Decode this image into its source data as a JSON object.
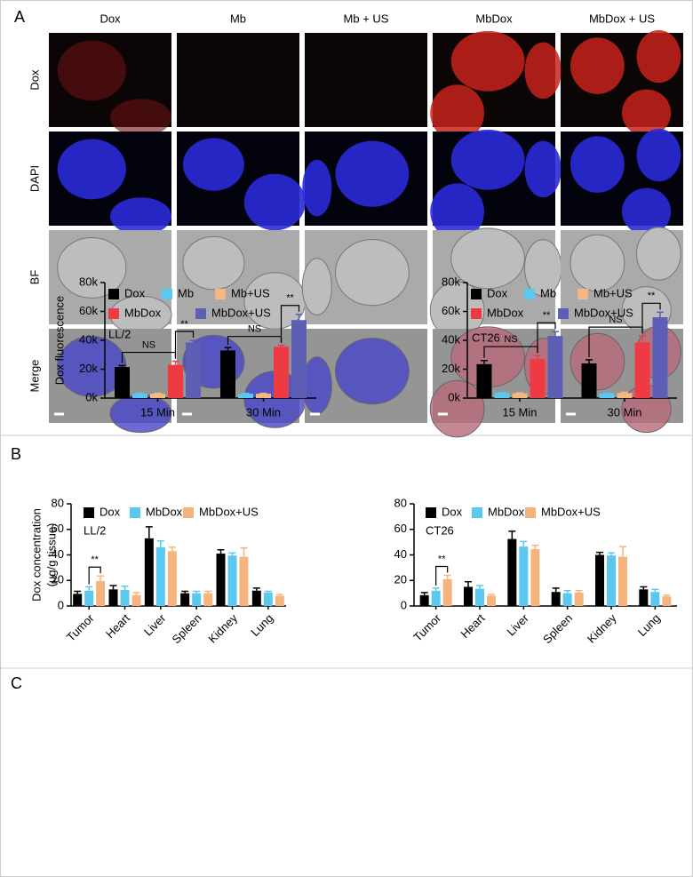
{
  "panel_labels": [
    "A",
    "B",
    "C"
  ],
  "panel_a": {
    "columns": [
      "Dox",
      "Mb",
      "Mb + US",
      "MbDox",
      "MbDox + US"
    ],
    "rows": [
      "Dox",
      "DAPI",
      "BF",
      "Merge"
    ]
  },
  "chart_data": [
    {
      "type": "bar",
      "ylabel": "Dox fluorescence",
      "label": "LL/2",
      "annotations": [
        "NS",
        "**",
        "NS",
        "**"
      ],
      "categories": [
        "15 Min",
        "30 Min"
      ],
      "ylim": [
        0,
        80000
      ],
      "yticks": [
        {
          "value": 0,
          "label": "0k"
        },
        {
          "value": 20000,
          "label": "20k"
        },
        {
          "value": 40000,
          "label": "40k"
        },
        {
          "value": 60000,
          "label": "60k"
        },
        {
          "value": 80000,
          "label": "80k"
        }
      ],
      "series": [
        {
          "name": "Dox",
          "color": "#000000",
          "values": [
            21500,
            33000
          ],
          "errors": [
            1000,
            2000
          ]
        },
        {
          "name": "Mb",
          "color": "#5bc8f0",
          "values": [
            3000,
            3000
          ],
          "errors": [
            300,
            300
          ]
        },
        {
          "name": "Mb+US",
          "color": "#f5b880",
          "values": [
            3000,
            3000
          ],
          "errors": [
            300,
            300
          ]
        },
        {
          "name": "MbDox",
          "color": "#ee3a43",
          "values": [
            23000,
            35500
          ],
          "errors": [
            2500,
            1000
          ]
        },
        {
          "name": "MbDox+US",
          "color": "#5d5fb5",
          "values": [
            38500,
            54000
          ],
          "errors": [
            1500,
            4000
          ]
        }
      ]
    },
    {
      "type": "bar",
      "label": "CT26",
      "annotations": [
        "NS",
        "**",
        "NS",
        "**"
      ],
      "categories": [
        "15 Min",
        "30 Min"
      ],
      "ylim": [
        0,
        80000
      ],
      "yticks": [
        {
          "value": 0,
          "label": "0k"
        },
        {
          "value": 20000,
          "label": "20k"
        },
        {
          "value": 40000,
          "label": "40k"
        },
        {
          "value": 60000,
          "label": "60k"
        },
        {
          "value": 80000,
          "label": "80k"
        }
      ],
      "series": [
        {
          "name": "Dox",
          "color": "#000000",
          "values": [
            23500,
            24000
          ],
          "errors": [
            2500,
            2500
          ]
        },
        {
          "name": "Mb",
          "color": "#5bc8f0",
          "values": [
            3500,
            3200
          ],
          "errors": [
            300,
            300
          ]
        },
        {
          "name": "Mb+US",
          "color": "#f5b880",
          "values": [
            3300,
            3500
          ],
          "errors": [
            300,
            500
          ]
        },
        {
          "name": "MbDox",
          "color": "#ee3a43",
          "values": [
            27000,
            38500
          ],
          "errors": [
            2500,
            4500
          ]
        },
        {
          "name": "MbDox+US",
          "color": "#5d5fb5",
          "values": [
            43000,
            56000
          ],
          "errors": [
            3000,
            3500
          ]
        }
      ]
    },
    {
      "type": "bar",
      "ylabel": "Dox concentration",
      "ylabel_unit": "(μg/g tissue)",
      "label": "LL/2",
      "annotations": [
        "**"
      ],
      "categories": [
        "Tumor",
        "Heart",
        "Liver",
        "Spleen",
        "Kidney",
        "Lung"
      ],
      "ylim": [
        0,
        80
      ],
      "yticks": [
        0,
        20,
        40,
        60,
        80
      ],
      "series": [
        {
          "name": "Dox",
          "color": "#000000",
          "values": [
            9.5,
            13,
            53,
            10,
            41,
            12
          ],
          "errors": [
            2,
            3,
            9,
            1.5,
            3,
            2
          ]
        },
        {
          "name": "MbDox",
          "color": "#5bc8f0",
          "values": [
            12,
            12.5,
            46,
            10,
            39.5,
            10.5
          ],
          "errors": [
            3,
            3,
            5,
            1.5,
            2,
            1
          ]
        },
        {
          "name": "MbDox+US",
          "color": "#f5b47e",
          "values": [
            19.5,
            8.5,
            43,
            10,
            38.5,
            8
          ],
          "errors": [
            4,
            2,
            3,
            1.5,
            7,
            1
          ]
        }
      ]
    },
    {
      "type": "bar",
      "label": "CT26",
      "annotations": [
        "**"
      ],
      "categories": [
        "Tumor",
        "Heart",
        "Liver",
        "Spleen",
        "Kidney",
        "Lung"
      ],
      "ylim": [
        0,
        80
      ],
      "yticks": [
        0,
        20,
        40,
        60,
        80
      ],
      "series": [
        {
          "name": "Dox",
          "color": "#000000",
          "values": [
            8.5,
            15,
            52.5,
            11,
            40,
            13
          ],
          "errors": [
            2,
            4,
            6,
            3,
            2,
            2
          ]
        },
        {
          "name": "MbDox",
          "color": "#5bc8f0",
          "values": [
            12,
            13.5,
            46.5,
            10,
            39.5,
            11
          ],
          "errors": [
            2,
            2.5,
            4,
            2,
            2,
            2
          ]
        },
        {
          "name": "MbDox+US",
          "color": "#f5b47e",
          "values": [
            21,
            8,
            44.5,
            10.5,
            38.5,
            7.5
          ],
          "errors": [
            3,
            1,
            3,
            1.5,
            8,
            1
          ]
        }
      ]
    }
  ]
}
